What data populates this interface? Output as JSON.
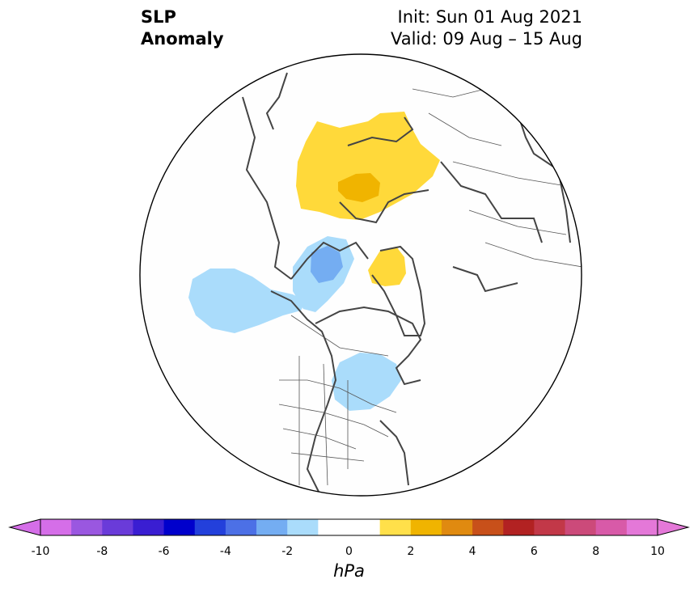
{
  "header": {
    "title_line1": "SLP",
    "title_line2": "Anomaly",
    "init": "Init: Sun 01 Aug 2021",
    "valid": "Valid: 09 Aug – 15 Aug"
  },
  "colorbar": {
    "unit": "hPa",
    "min": -10,
    "max": 10,
    "step": 1,
    "tick_labels": [
      "-10",
      "-8",
      "-6",
      "-4",
      "-2",
      "0",
      "2",
      "4",
      "6",
      "8",
      "10"
    ],
    "colors": [
      "#d56ee8",
      "#9a57e0",
      "#6a3bd9",
      "#3a1ed2",
      "#0000cc",
      "#2340db",
      "#4c70e6",
      "#74adf2",
      "#aadcfb",
      "#ffffff",
      "#ffffff",
      "#ffe04a",
      "#f0b400",
      "#e08a10",
      "#c8501a",
      "#b22222",
      "#c23848",
      "#cc4a7a",
      "#d85aa8",
      "#e478d8"
    ],
    "extend": "both"
  },
  "map": {
    "projection": "north-polar-stereographic",
    "features": [
      "coastlines",
      "country-borders",
      "us-state-borders"
    ],
    "anomalies": [
      {
        "region": "Scandinavia / Barents",
        "sign": "positive",
        "peak_hPa": 3
      },
      {
        "region": "Beaufort Sea / Alaska",
        "sign": "negative",
        "peak_hPa": -3
      },
      {
        "region": "North Pacific",
        "sign": "negative",
        "peak_hPa": -2
      },
      {
        "region": "Greenland",
        "sign": "positive",
        "peak_hPa": 2
      },
      {
        "region": "Hudson Bay / Great Lakes",
        "sign": "negative",
        "peak_hPa": -2
      }
    ]
  }
}
